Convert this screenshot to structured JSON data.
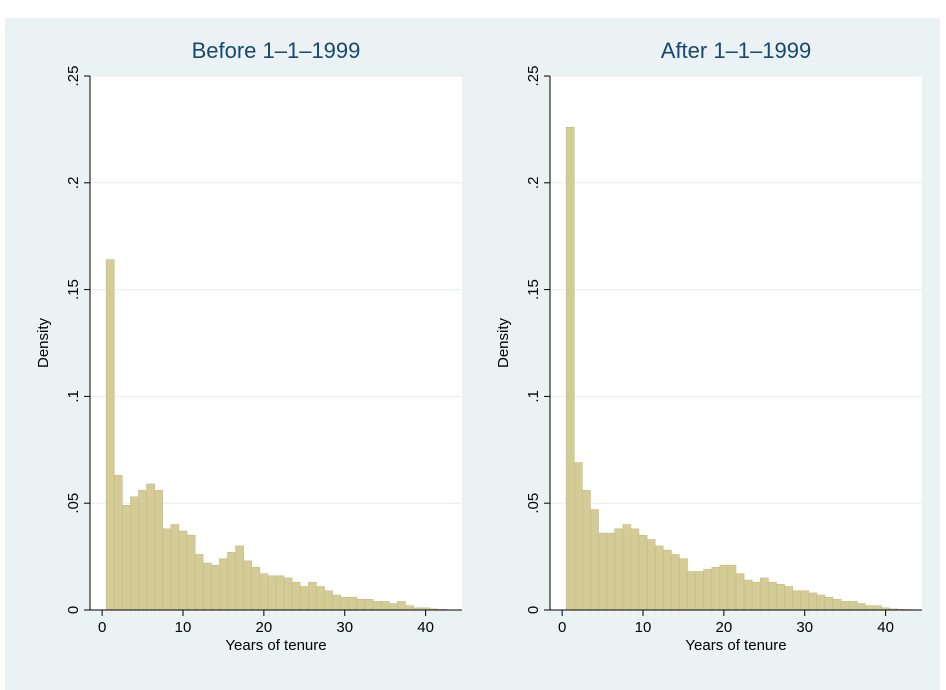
{
  "chart_data": [
    {
      "type": "bar",
      "title": "Before 1–1–1999",
      "xlabel": "Years of tenure",
      "ylabel": "Density",
      "xlim": [
        -1.5,
        44.5
      ],
      "ylim": [
        0,
        0.25
      ],
      "xticks": [
        0,
        10,
        20,
        30,
        40
      ],
      "xtick_labels": [
        "0",
        "10",
        "20",
        "30",
        "40"
      ],
      "yticks": [
        0,
        0.05,
        0.1,
        0.15,
        0.2,
        0.25
      ],
      "ytick_labels": [
        "0",
        ".05",
        ".1",
        ".15",
        ".2",
        ".25"
      ],
      "grid": true,
      "bin_width": 1,
      "bin_start": 0.5,
      "values": [
        0.164,
        0.063,
        0.049,
        0.053,
        0.056,
        0.059,
        0.056,
        0.038,
        0.04,
        0.037,
        0.035,
        0.026,
        0.022,
        0.021,
        0.024,
        0.027,
        0.03,
        0.023,
        0.02,
        0.017,
        0.016,
        0.016,
        0.015,
        0.013,
        0.011,
        0.013,
        0.011,
        0.009,
        0.007,
        0.006,
        0.006,
        0.005,
        0.005,
        0.004,
        0.004,
        0.003,
        0.004,
        0.002,
        0.001,
        0.001,
        0.0005,
        0.0003
      ]
    },
    {
      "type": "bar",
      "title": "After 1–1–1999",
      "xlabel": "Years of tenure",
      "ylabel": "Density",
      "xlim": [
        -1.5,
        44.5
      ],
      "ylim": [
        0,
        0.25
      ],
      "xticks": [
        0,
        10,
        20,
        30,
        40
      ],
      "xtick_labels": [
        "0",
        "10",
        "20",
        "30",
        "40"
      ],
      "yticks": [
        0,
        0.05,
        0.1,
        0.15,
        0.2,
        0.25
      ],
      "ytick_labels": [
        "0",
        ".05",
        ".1",
        ".15",
        ".2",
        ".25"
      ],
      "grid": true,
      "bin_width": 1,
      "bin_start": 0.5,
      "values": [
        0.226,
        0.069,
        0.056,
        0.047,
        0.036,
        0.036,
        0.038,
        0.04,
        0.038,
        0.035,
        0.033,
        0.03,
        0.028,
        0.026,
        0.024,
        0.018,
        0.018,
        0.019,
        0.02,
        0.021,
        0.021,
        0.017,
        0.014,
        0.013,
        0.015,
        0.013,
        0.012,
        0.011,
        0.009,
        0.009,
        0.008,
        0.007,
        0.006,
        0.005,
        0.004,
        0.004,
        0.003,
        0.002,
        0.002,
        0.001,
        0.0005,
        0.0003,
        0.0002
      ]
    }
  ],
  "colors": {
    "figure_background": "#eaf2f3",
    "plot_background": "#ffffff",
    "bar_fill": "#d4cc96",
    "bar_edge": "#c4bb7f",
    "grid": "#e6eef0",
    "title": "#1a476f"
  }
}
